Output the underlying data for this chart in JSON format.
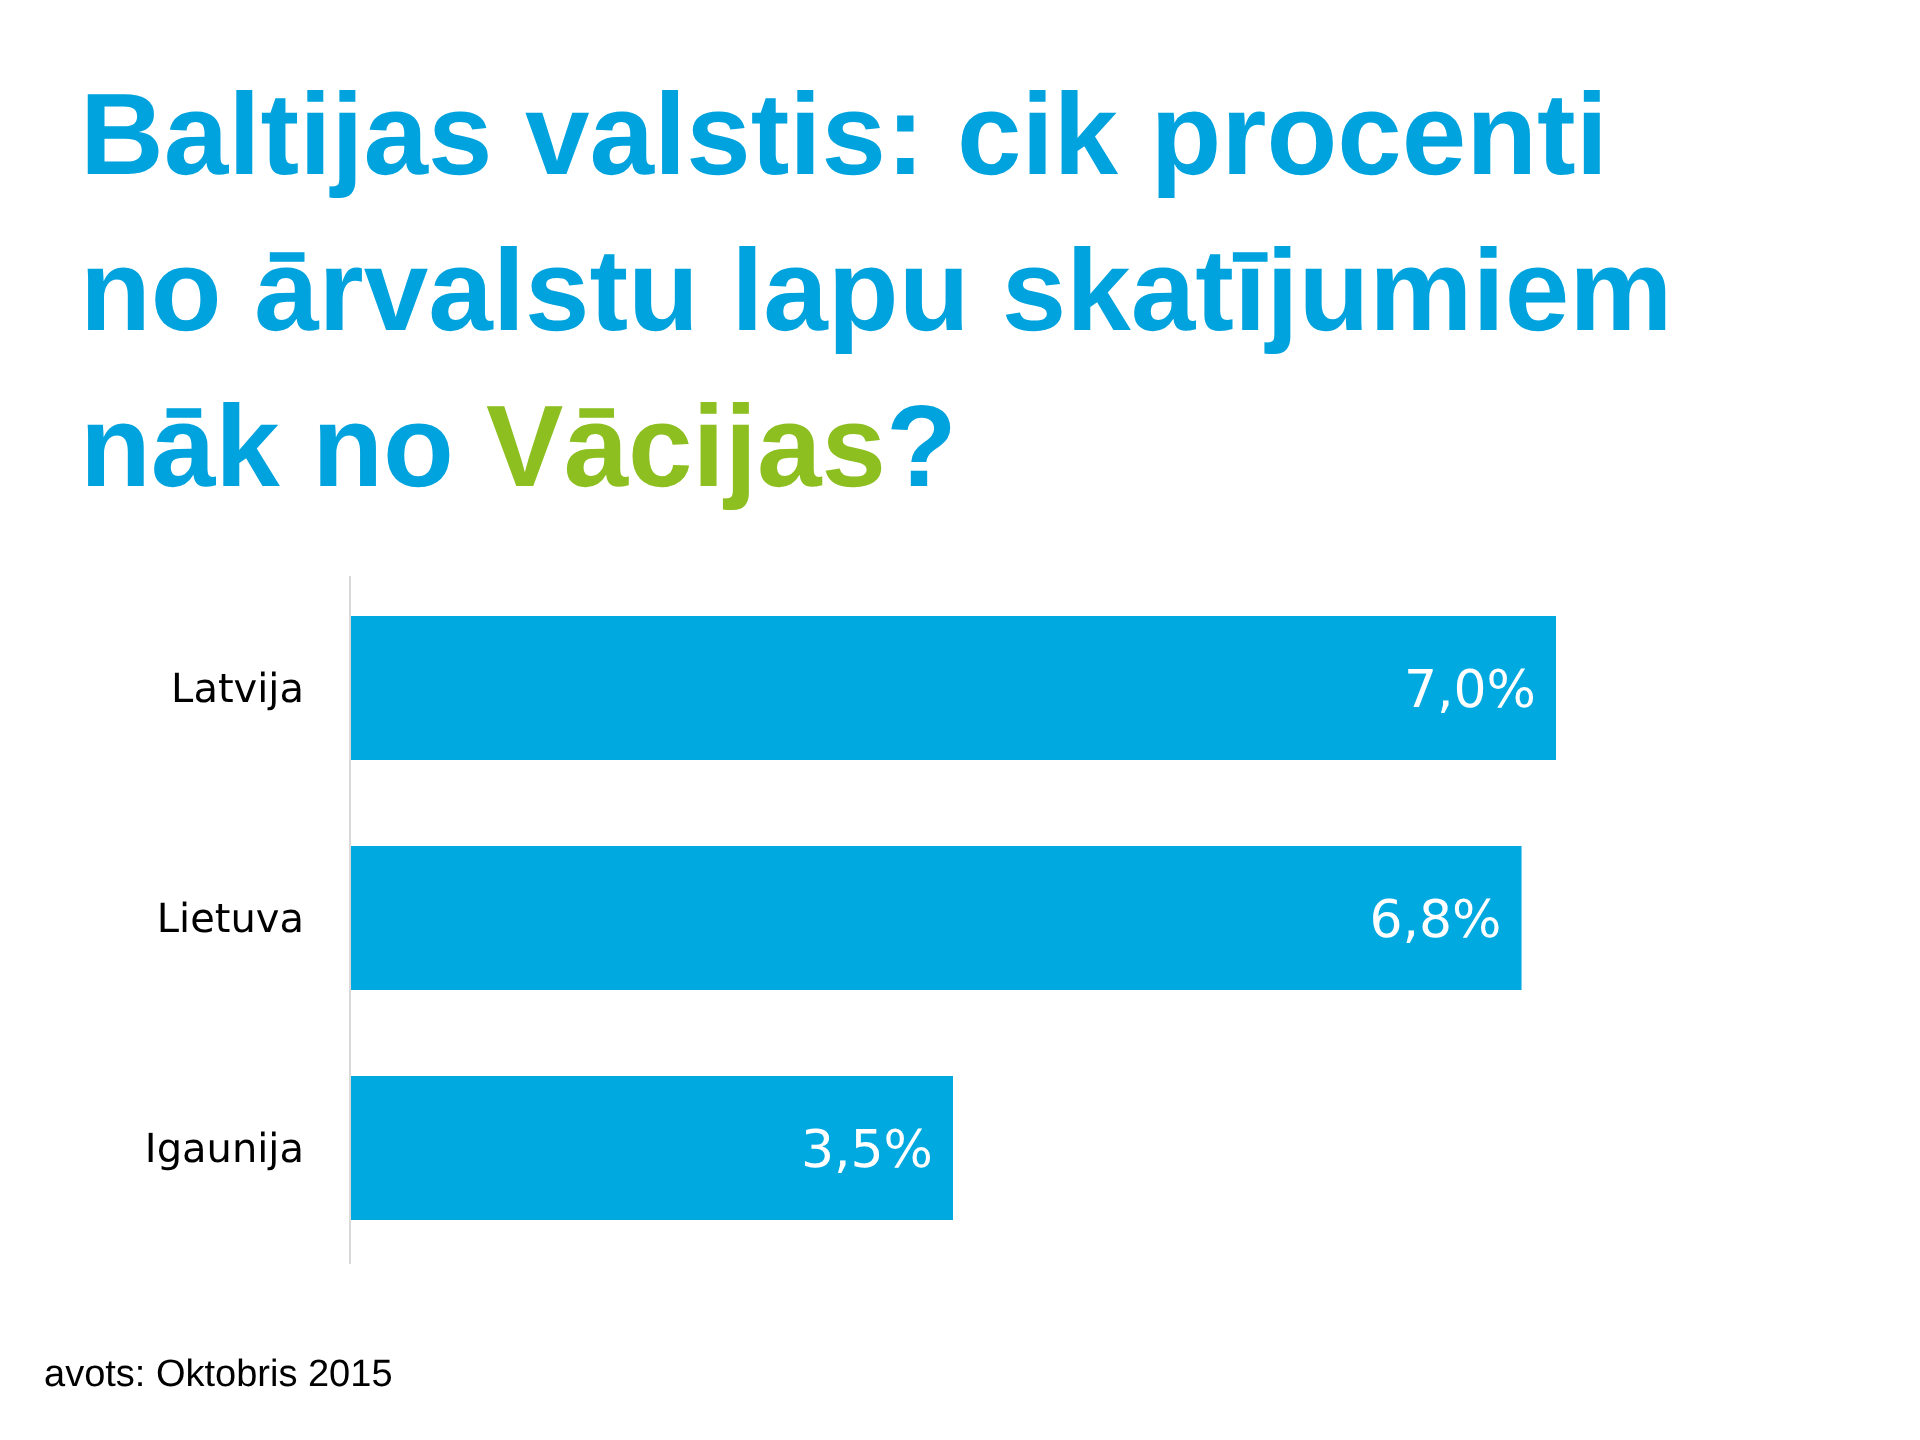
{
  "chart_data": {
    "type": "bar",
    "orientation": "horizontal",
    "title": "Baltijas valstis: cik procenti no ārvalstu lapu skatījumiem nāk no Vācijas?",
    "categories": [
      "Latvija",
      "Lietuva",
      "Igaunija"
    ],
    "values": [
      7.0,
      6.8,
      3.5
    ],
    "value_labels": [
      "7,0%",
      "6,8%",
      "3,5%"
    ],
    "color": "#00a9e0",
    "tick_labels": "y",
    "annotations": [
      "avots: Oktobris 2015"
    ]
  }
}
